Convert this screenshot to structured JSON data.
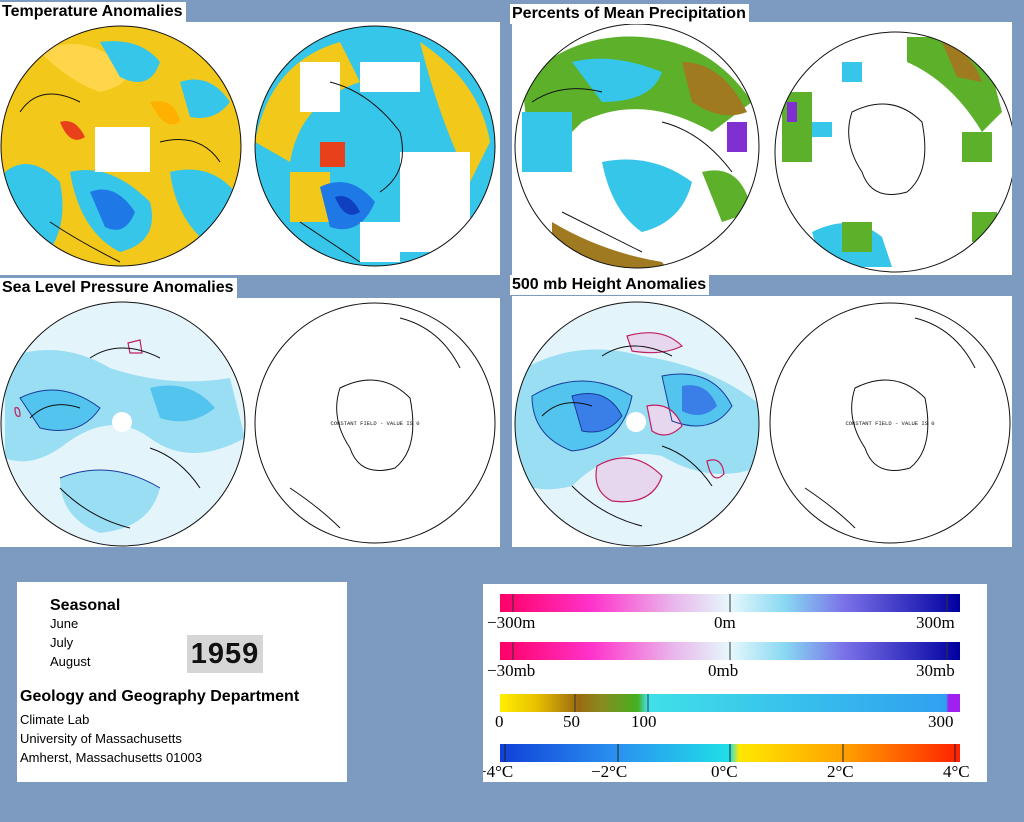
{
  "panels": {
    "temperature": {
      "title": "Temperature Anomalies"
    },
    "precipitation": {
      "title": "Percents of Mean Precipitation"
    },
    "slp": {
      "title": "Sea Level Pressure Anomalies",
      "annotation": "CONSTANT FIELD - VALUE IS 0"
    },
    "height": {
      "title": "500 mb Height Anomalies",
      "annotation": "CONSTANT FIELD - VALUE IS 0"
    }
  },
  "info": {
    "season": "Seasonal",
    "months": [
      "June",
      "July",
      "August"
    ],
    "year": "1959",
    "department": "Geology and Geography Department",
    "lab": "Climate Lab",
    "university": "University of Massachusetts",
    "address": "Amherst, Massachusetts 01003"
  },
  "legends": {
    "height": {
      "min": "−300m",
      "mid": "0m",
      "max": "300m"
    },
    "pressure": {
      "min": "−30mb",
      "mid": "0mb",
      "max": "30mb"
    },
    "precip": {
      "labels": [
        "0",
        "50",
        "100",
        "300"
      ]
    },
    "temp": {
      "labels": [
        "−4°C",
        "−2°C",
        "0°C",
        "2°C",
        "4°C"
      ]
    }
  },
  "colors": {
    "background": "#7d9bc1",
    "warm": "#ffcc00",
    "cool": "#33ccee",
    "strong_cool": "#1550e0",
    "strong_warm": "#e8401a",
    "contour_blue": "#1a3a9a",
    "contour_red": "#c02060"
  }
}
